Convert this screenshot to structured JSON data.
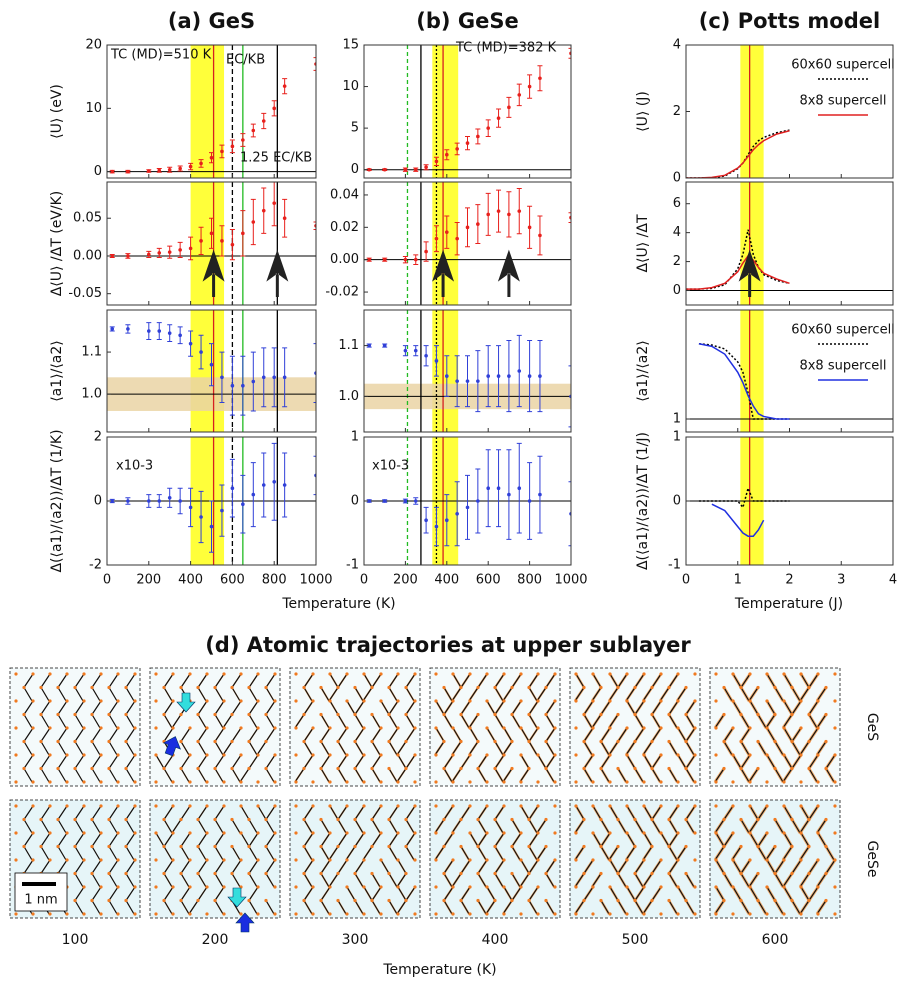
{
  "chart_data": [
    {
      "type": "errorbar",
      "title": "(a) GeS",
      "ylabel": "⟨U⟩ (eV)",
      "color": "#e8201c",
      "x": [
        25,
        100,
        200,
        250,
        300,
        350,
        400,
        450,
        500,
        550,
        600,
        650,
        700,
        750,
        800,
        850,
        1000
      ],
      "values": [
        0,
        0,
        0.1,
        0.2,
        0.3,
        0.5,
        0.8,
        1.3,
        2.2,
        3.2,
        4,
        5,
        6.5,
        8,
        10,
        13.5,
        17
      ],
      "errors": [
        0.2,
        0.2,
        0.2,
        0.3,
        0.4,
        0.4,
        0.5,
        0.6,
        0.8,
        1,
        1,
        1,
        1,
        1.2,
        1.2,
        1.2,
        1
      ],
      "ylim": [
        -1,
        20
      ],
      "yticks": [
        0,
        10,
        20
      ],
      "hline": 0,
      "vbands": [
        [
          400,
          560
        ]
      ],
      "vband_color": "#ffff3a",
      "vlines": [
        {
          "x": 510,
          "color": "#d62020"
        },
        {
          "x": 600,
          "color": "#000000",
          "dash": "5,3"
        },
        {
          "x": 650,
          "color": "#22bb22"
        },
        {
          "x": 815,
          "color": "#000000"
        }
      ],
      "annotations": [
        {
          "text": "TC (MD)=510 K",
          "color": "#e8201c"
        },
        {
          "text": "EC/KB",
          "color": "#22bb22"
        },
        {
          "text": "1.25 EC/KB",
          "color": "#000000"
        }
      ]
    },
    {
      "type": "errorbar",
      "ylabel": "Δ⟨U⟩ /ΔT (eV/K)",
      "color": "#e8201c",
      "x": [
        25,
        100,
        200,
        250,
        300,
        350,
        400,
        450,
        500,
        550,
        600,
        650,
        700,
        750,
        800,
        850,
        1000
      ],
      "values": [
        0,
        0,
        0.002,
        0.004,
        0.005,
        0.008,
        0.01,
        0.02,
        0.03,
        0.02,
        0.015,
        0.03,
        0.045,
        0.06,
        0.07,
        0.05,
        0.04
      ],
      "errors": [
        0.002,
        0.003,
        0.004,
        0.006,
        0.008,
        0.01,
        0.015,
        0.018,
        0.02,
        0.02,
        0.02,
        0.03,
        0.03,
        0.03,
        0.03,
        0.025,
        0.005
      ],
      "ylim": [
        -0.065,
        0.098
      ],
      "yticks": [
        -0.05,
        {
          "value": 0,
          "label": "0.00"
        },
        0.05
      ],
      "hline": 0,
      "arrows_x": [
        510,
        815
      ]
    },
    {
      "type": "errorbar",
      "ylabel": "⟨a1⟩/⟨a2⟩",
      "color": "#3040d8",
      "x": [
        25,
        100,
        200,
        250,
        300,
        350,
        400,
        450,
        500,
        550,
        600,
        650,
        700,
        750,
        800,
        850,
        1000
      ],
      "values": [
        1.155,
        1.155,
        1.15,
        1.15,
        1.145,
        1.14,
        1.12,
        1.1,
        1.07,
        1.04,
        1.02,
        1.02,
        1.03,
        1.04,
        1.04,
        1.04,
        1.05
      ],
      "errors": [
        0.005,
        0.01,
        0.02,
        0.02,
        0.02,
        0.02,
        0.03,
        0.04,
        0.05,
        0.06,
        0.07,
        0.07,
        0.07,
        0.07,
        0.07,
        0.07,
        0.07
      ],
      "ylim": [
        0.91,
        1.2
      ],
      "yticks": [
        {
          "value": 1,
          "label": "1.0"
        },
        1.1
      ],
      "hline": 1,
      "hbands": [
        [
          0.96,
          1.04
        ]
      ],
      "hband_color": "#ead3a5"
    },
    {
      "type": "errorbar",
      "ylabel": "Δ(⟨a1⟩/⟨a2⟩)/ΔT (1/K)",
      "color": "#3040d8",
      "x": [
        25,
        100,
        200,
        250,
        300,
        350,
        400,
        450,
        500,
        550,
        600,
        650,
        700,
        750,
        800,
        850,
        1000
      ],
      "values": [
        0,
        0,
        0,
        0,
        0.1,
        0,
        -0.2,
        -0.5,
        -0.8,
        -0.3,
        0.4,
        -0.1,
        0.2,
        0.5,
        0.6,
        0.5,
        0.8
      ],
      "errors": [
        0.05,
        0.1,
        0.2,
        0.2,
        0.3,
        0.4,
        0.6,
        0.8,
        0.8,
        0.8,
        0.9,
        0.9,
        1,
        1,
        1.2,
        1,
        0.6
      ],
      "ylim": [
        -2,
        2
      ],
      "yticks": [
        -2,
        0,
        2
      ],
      "hline": 0,
      "annotations": [
        {
          "text": "x10-3",
          "color": "#000000"
        }
      ],
      "xlabel": "Temperature (K)",
      "xlim": [
        0,
        1000
      ],
      "xticks": [
        0,
        200,
        400,
        600,
        800,
        1000
      ]
    },
    {
      "type": "errorbar",
      "title": "(b) GeSe",
      "color": "#e8201c",
      "x": [
        25,
        100,
        200,
        250,
        300,
        350,
        400,
        450,
        500,
        550,
        600,
        650,
        700,
        750,
        800,
        850,
        1000
      ],
      "values": [
        0,
        0,
        0,
        0,
        0.3,
        1,
        1.8,
        2.5,
        3.2,
        4,
        5,
        6.2,
        7.5,
        9,
        10,
        11,
        14
      ],
      "errors": [
        0.1,
        0.1,
        0.2,
        0.2,
        0.3,
        0.5,
        0.6,
        0.7,
        0.8,
        0.9,
        1,
        1.1,
        1.2,
        1.3,
        1.4,
        1.5,
        0.6
      ],
      "ylim": [
        -1,
        15
      ],
      "yticks": [
        0,
        5,
        10,
        15
      ],
      "hline": 0,
      "vbands": [
        [
          330,
          455
        ]
      ],
      "vband_color": "#ffff3a",
      "vlines": [
        {
          "x": 210,
          "color": "#22bb22",
          "dash": "4,3"
        },
        {
          "x": 275,
          "color": "#000000"
        },
        {
          "x": 350,
          "color": "#000000",
          "dash": "2,2"
        },
        {
          "x": 382,
          "color": "#d62020"
        }
      ],
      "annotations": [
        {
          "text": "TC (MD)=382 K",
          "color": "#e8201c"
        }
      ]
    },
    {
      "type": "errorbar",
      "color": "#e8201c",
      "x": [
        25,
        100,
        200,
        250,
        300,
        350,
        400,
        450,
        500,
        550,
        600,
        650,
        700,
        750,
        800,
        850,
        1000
      ],
      "values": [
        0,
        0,
        0,
        0,
        0.005,
        0.013,
        0.017,
        0.013,
        0.02,
        0.022,
        0.028,
        0.03,
        0.028,
        0.03,
        0.02,
        0.015,
        0.026
      ],
      "errors": [
        0.001,
        0.001,
        0.002,
        0.003,
        0.006,
        0.008,
        0.01,
        0.01,
        0.012,
        0.012,
        0.013,
        0.013,
        0.014,
        0.014,
        0.013,
        0.012,
        0.003
      ],
      "ylim": [
        -0.028,
        0.048
      ],
      "yticks": [
        -0.02,
        {
          "value": 0,
          "label": "0.00"
        },
        0.02,
        0.04
      ],
      "hline": 0,
      "arrows_x": [
        382,
        700
      ]
    },
    {
      "type": "errorbar",
      "color": "#3040d8",
      "x": [
        25,
        100,
        200,
        250,
        300,
        350,
        400,
        450,
        500,
        550,
        600,
        650,
        700,
        750,
        800,
        850,
        1000
      ],
      "values": [
        1.1,
        1.1,
        1.09,
        1.09,
        1.08,
        1.07,
        1.04,
        1.03,
        1.03,
        1.03,
        1.04,
        1.04,
        1.04,
        1.05,
        1.04,
        1.04,
        1.0
      ],
      "errors": [
        0.003,
        0.003,
        0.01,
        0.01,
        0.02,
        0.03,
        0.04,
        0.05,
        0.05,
        0.06,
        0.06,
        0.06,
        0.07,
        0.07,
        0.07,
        0.07,
        0.06
      ],
      "ylim": [
        0.93,
        1.17
      ],
      "yticks": [
        {
          "value": 1,
          "label": "1.0"
        },
        1.1
      ],
      "hline": 1,
      "hbands": [
        [
          0.975,
          1.025
        ]
      ],
      "hband_color": "#ead3a5"
    },
    {
      "type": "errorbar",
      "color": "#3040d8",
      "x": [
        25,
        100,
        200,
        250,
        300,
        350,
        400,
        450,
        500,
        550,
        600,
        650,
        700,
        750,
        800,
        850,
        1000
      ],
      "values": [
        0,
        0,
        0,
        0,
        -0.3,
        -0.4,
        -0.3,
        -0.2,
        -0.1,
        0,
        0.2,
        0.2,
        0.1,
        0.2,
        0,
        0.1,
        -0.2
      ],
      "errors": [
        0.02,
        0.02,
        0.03,
        0.05,
        0.2,
        0.3,
        0.4,
        0.5,
        0.5,
        0.5,
        0.6,
        0.6,
        0.7,
        0.7,
        0.6,
        0.6,
        0.5
      ],
      "ylim": [
        -1,
        1
      ],
      "yticks": [
        -1,
        0,
        1
      ],
      "hline": 0,
      "annotations": [
        {
          "text": "x10-3",
          "color": "#000000"
        }
      ],
      "xlim": [
        0,
        1000
      ],
      "xticks": [
        0,
        200,
        400,
        600,
        800,
        1000
      ]
    },
    {
      "type": "line",
      "title": "(c) Potts model",
      "ylabel": "⟨U⟩ (J)",
      "legend": true,
      "x": [
        0,
        0.25,
        0.5,
        0.75,
        1,
        1.1,
        1.2,
        1.3,
        1.4,
        1.5,
        1.75,
        2
      ],
      "series": [
        {
          "name": "60x60 supercell",
          "color": "#000000",
          "dash": "2,2",
          "values": [
            0,
            0,
            0.01,
            0.06,
            0.28,
            0.45,
            0.7,
            0.95,
            1.12,
            1.22,
            1.36,
            1.44
          ]
        },
        {
          "name": "8x8 supercell",
          "color": "#e02020",
          "values": [
            0,
            0,
            0.02,
            0.08,
            0.3,
            0.45,
            0.65,
            0.85,
            1.0,
            1.12,
            1.32,
            1.42
          ]
        }
      ],
      "ylim": [
        0,
        4
      ],
      "yticks": [
        0,
        2,
        4
      ],
      "vbands": [
        [
          1.05,
          1.5
        ]
      ],
      "vband_color": "#ffff3a",
      "vlines": [
        {
          "x": 1.23,
          "color": "#d62020"
        }
      ]
    },
    {
      "type": "line",
      "ylabel": "Δ⟨U⟩ /ΔT",
      "x": [
        0,
        0.25,
        0.5,
        0.75,
        1,
        1.1,
        1.2,
        1.3,
        1.4,
        1.5,
        1.75,
        2
      ],
      "series": [
        {
          "color": "#000000",
          "dash": "2,2",
          "values": [
            0.1,
            0.1,
            0.15,
            0.4,
            1.5,
            2.5,
            4.2,
            2.5,
            1.6,
            1.1,
            0.7,
            0.5
          ]
        },
        {
          "color": "#e02020",
          "values": [
            0.1,
            0.1,
            0.2,
            0.5,
            1.3,
            1.9,
            2.4,
            2.1,
            1.6,
            1.2,
            0.8,
            0.5
          ]
        }
      ],
      "ylim": [
        -1,
        7.5
      ],
      "yticks": [
        0,
        2,
        4,
        6
      ],
      "hline": 0,
      "arrows_x": [
        1.23
      ]
    },
    {
      "type": "line",
      "ylabel": "⟨a1⟩/⟨a2⟩",
      "legend": true,
      "x": [
        0,
        0.25,
        0.5,
        0.75,
        1,
        1.1,
        1.2,
        1.3,
        1.4,
        1.5,
        1.75,
        2
      ],
      "series": [
        {
          "name": "60x60 supercell",
          "color": "#000000",
          "dash": "2,2",
          "values": [
            null,
            1.29,
            1.285,
            1.27,
            1.22,
            1.18,
            1.1,
            1.0,
            1.0,
            1.0,
            1.0,
            1.0
          ]
        },
        {
          "name": "8x8 supercell",
          "color": "#2030e0",
          "values": [
            null,
            1.29,
            1.28,
            1.25,
            1.18,
            1.14,
            1.09,
            1.05,
            1.02,
            1.01,
            1.0,
            1.0
          ]
        }
      ],
      "ylim": [
        0.95,
        1.42
      ],
      "yticks": [
        1
      ],
      "hline": 1
    },
    {
      "type": "line",
      "ylabel": "Δ(⟨a1⟩/⟨a2⟩)/ΔT (1/J)",
      "x": [
        0,
        0.25,
        0.5,
        0.75,
        1,
        1.1,
        1.2,
        1.3,
        1.4,
        1.5,
        1.75,
        2
      ],
      "series": [
        {
          "color": "#000000",
          "dash": "2,2",
          "values": [
            null,
            0,
            0,
            0,
            0,
            -0.1,
            0.2,
            0,
            0,
            0,
            0,
            0
          ]
        },
        {
          "color": "#2030e0",
          "values": [
            null,
            null,
            -0.05,
            -0.15,
            -0.4,
            -0.5,
            -0.55,
            -0.55,
            -0.45,
            -0.3,
            null,
            null
          ]
        }
      ],
      "ylim": [
        -1,
        1
      ],
      "yticks": [
        -1,
        0,
        1
      ],
      "hline": 0,
      "xlabel": "Temperature (J)",
      "xlim": [
        0,
        4
      ],
      "xticks": [
        0,
        1,
        2,
        3,
        4
      ]
    }
  ],
  "panel_d": {
    "title": "(d) Atomic trajectories at upper sublayer",
    "rows": [
      "GeS",
      "GeSe"
    ],
    "columns": [
      "100",
      "200",
      "300",
      "400",
      "500",
      "600"
    ],
    "xlabel": "Temperature (K)",
    "scale_bar": "1 nm"
  }
}
